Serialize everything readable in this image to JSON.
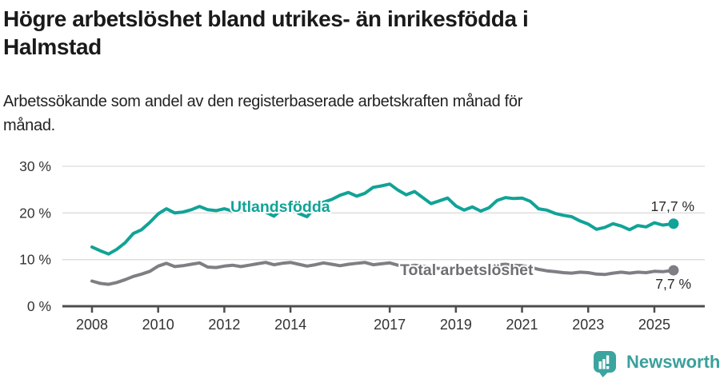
{
  "header": {
    "title_lines": [
      "Högre arbetslöshet bland utrikes- än inrikesfödda i",
      "Halmstad"
    ],
    "subtitle_lines": [
      "Arbetssökande som andel av den registerbaserade arbetskraften månad för",
      "månad."
    ]
  },
  "chart_data": {
    "type": "line",
    "title": "Högre arbetslöshet bland utrikes- än inrikesfödda i Halmstad",
    "subtitle": "Arbetssökande som andel av den registerbaserade arbetskraften månad för månad.",
    "xlabel": "",
    "ylabel": "",
    "ylim": [
      0,
      30
    ],
    "xlim": [
      2007.1,
      2026.6
    ],
    "grid": true,
    "legend_position": "inline-labels",
    "yticks": [
      {
        "value": 0,
        "label": "0 %"
      },
      {
        "value": 10,
        "label": "10 %"
      },
      {
        "value": 20,
        "label": "20 %"
      },
      {
        "value": 30,
        "label": "30 %"
      }
    ],
    "xticks": [
      {
        "value": 2008,
        "label": "2008"
      },
      {
        "value": 2010,
        "label": "2010"
      },
      {
        "value": 2012,
        "label": "2012"
      },
      {
        "value": 2014,
        "label": "2014"
      },
      {
        "value": 2017,
        "label": "2017"
      },
      {
        "value": 2019,
        "label": "2019"
      },
      {
        "value": 2021,
        "label": "2021"
      },
      {
        "value": 2023,
        "label": "2023"
      },
      {
        "value": 2025,
        "label": "2025"
      }
    ],
    "x": [
      2008,
      2008.25,
      2008.5,
      2008.75,
      2009,
      2009.25,
      2009.5,
      2009.75,
      2010,
      2010.25,
      2010.5,
      2010.75,
      2011,
      2011.25,
      2011.5,
      2011.75,
      2012,
      2012.25,
      2012.5,
      2012.75,
      2013,
      2013.25,
      2013.5,
      2013.75,
      2014,
      2014.25,
      2014.5,
      2014.75,
      2015,
      2015.25,
      2015.5,
      2015.75,
      2016,
      2016.25,
      2016.5,
      2016.75,
      2017,
      2017.25,
      2017.5,
      2017.75,
      2018,
      2018.25,
      2018.5,
      2018.75,
      2019,
      2019.25,
      2019.5,
      2019.75,
      2020,
      2020.25,
      2020.5,
      2020.75,
      2021,
      2021.25,
      2021.5,
      2021.75,
      2022,
      2022.25,
      2022.5,
      2022.75,
      2023,
      2023.25,
      2023.5,
      2023.75,
      2024,
      2024.25,
      2024.5,
      2024.75,
      2025,
      2025.25,
      2025.58
    ],
    "series": [
      {
        "key": "utlandsfodda",
        "name": "Utlandsfödda",
        "color": "#11a397",
        "label_color": "#11a397",
        "end_label": "17,7 %",
        "end_value": 17.7,
        "values": [
          12.7,
          11.9,
          11.2,
          12.2,
          13.6,
          15.6,
          16.4,
          18.0,
          19.8,
          20.9,
          20.0,
          20.2,
          20.7,
          21.4,
          20.7,
          20.5,
          20.9,
          20.4,
          21.0,
          20.8,
          21.2,
          20.2,
          19.3,
          20.9,
          21.4,
          19.9,
          19.2,
          21.3,
          22.3,
          22.9,
          23.8,
          24.4,
          23.6,
          24.2,
          25.5,
          25.8,
          26.2,
          24.9,
          23.9,
          24.6,
          23.3,
          22.0,
          22.6,
          23.2,
          21.5,
          20.6,
          21.3,
          20.4,
          21.1,
          22.7,
          23.3,
          23.1,
          23.2,
          22.5,
          20.9,
          20.6,
          19.9,
          19.5,
          19.2,
          18.3,
          17.6,
          16.5,
          16.9,
          17.7,
          17.2,
          16.4,
          17.3,
          17.0,
          17.9,
          17.4,
          17.7
        ]
      },
      {
        "key": "total-arbetsloshet",
        "name": "Total arbetslöshet",
        "color": "#7e7e84",
        "label_color": "#6e6e74",
        "end_label": "7,7 %",
        "end_value": 7.7,
        "values": [
          5.4,
          4.9,
          4.7,
          5.1,
          5.7,
          6.4,
          6.9,
          7.5,
          8.6,
          9.2,
          8.5,
          8.7,
          9.0,
          9.3,
          8.4,
          8.3,
          8.6,
          8.8,
          8.5,
          8.8,
          9.1,
          9.4,
          8.9,
          9.2,
          9.4,
          9.0,
          8.6,
          8.9,
          9.3,
          9.0,
          8.7,
          9.0,
          9.2,
          9.4,
          8.9,
          9.1,
          9.3,
          8.8,
          8.5,
          8.8,
          8.6,
          8.3,
          8.1,
          8.3,
          8.2,
          8.0,
          8.1,
          8.0,
          8.3,
          8.9,
          9.0,
          8.8,
          8.7,
          8.4,
          7.9,
          7.6,
          7.4,
          7.2,
          7.1,
          7.3,
          7.2,
          6.9,
          6.8,
          7.1,
          7.3,
          7.1,
          7.3,
          7.2,
          7.5,
          7.4,
          7.7
        ]
      }
    ],
    "colors": {
      "grid": "#dcdcdc",
      "axis": "#4d4d4d",
      "tick_text": "#333333",
      "end_label_text": "#2a2a2a"
    }
  },
  "footer": {
    "brand": "Newsworthy",
    "logo_icon": "speech-bubble-bar-chart-icon",
    "brand_color": "#3ba09c",
    "logo_fill": "#3ba49f"
  }
}
